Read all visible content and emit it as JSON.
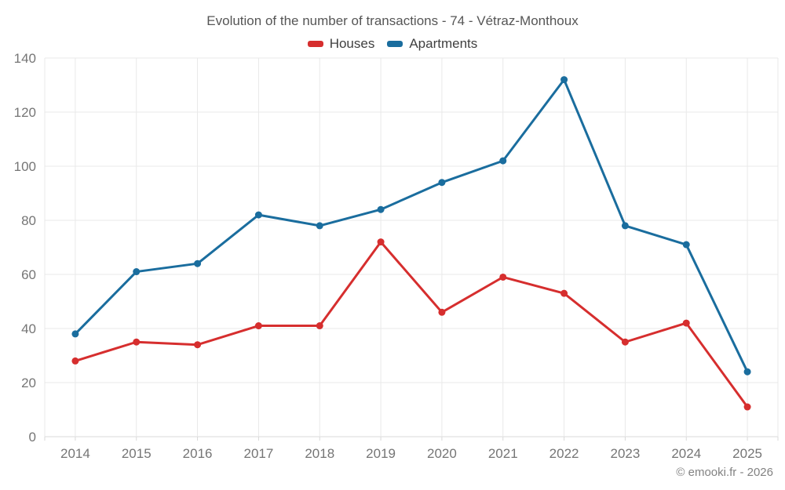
{
  "header": {
    "title": "Evolution of the number of transactions - 74 - Vétraz-Monthoux"
  },
  "footer": {
    "credit": "© emooki.fr - 2026"
  },
  "colors": {
    "houses": "#d62e2e",
    "apartments": "#1a6d9e",
    "grid": "#e9e9e9",
    "axis": "#d9d9d9",
    "tick_label": "#757575",
    "title_text": "#565656",
    "background": "#ffffff"
  },
  "chart_data": {
    "type": "line",
    "title": "Evolution of the number of transactions - 74 - Vétraz-Monthoux",
    "categories": [
      "2014",
      "2015",
      "2016",
      "2017",
      "2018",
      "2019",
      "2020",
      "2021",
      "2022",
      "2023",
      "2024",
      "2025"
    ],
    "series": [
      {
        "name": "Houses",
        "color": "#d62e2e",
        "values": [
          28,
          35,
          34,
          41,
          41,
          72,
          46,
          59,
          53,
          35,
          42,
          11
        ]
      },
      {
        "name": "Apartments",
        "color": "#1a6d9e",
        "values": [
          38,
          61,
          64,
          82,
          78,
          84,
          94,
          102,
          132,
          78,
          71,
          24
        ]
      }
    ],
    "xlabel": "",
    "ylabel": "",
    "ylim": [
      0,
      140
    ],
    "yticks": [
      0,
      20,
      40,
      60,
      80,
      100,
      120,
      140
    ],
    "grid": true,
    "legend_position": "top"
  }
}
